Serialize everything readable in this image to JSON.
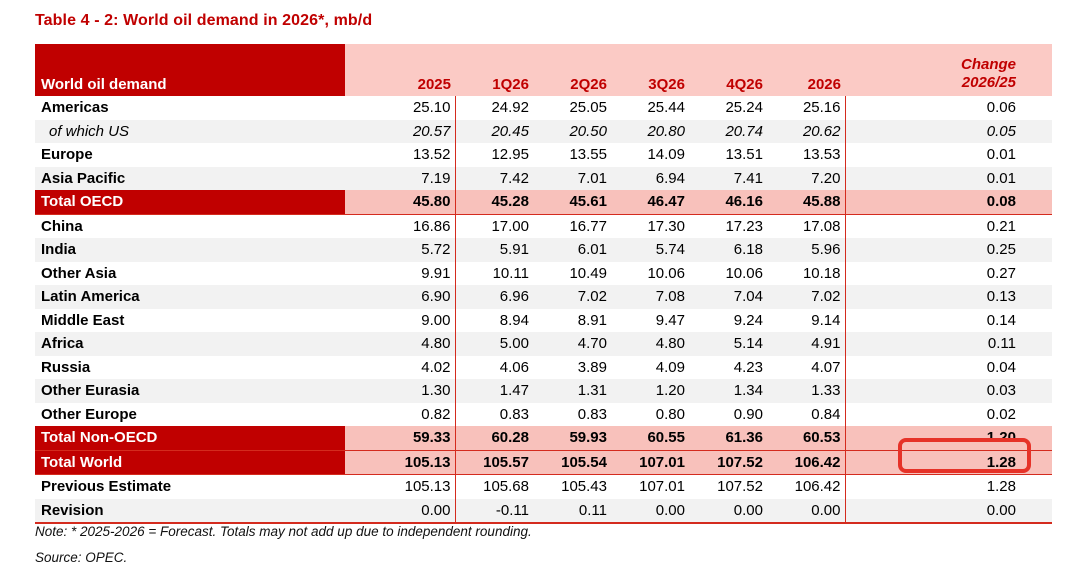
{
  "title": "Table 4 - 2: World oil demand in 2026*, mb/d",
  "colors": {
    "accent_dark_red": "#C00000",
    "header_pink": "#FBCAC5",
    "total_pink": "#F8C1BB",
    "stripe_gray": "#F2F2F2",
    "rule_red": "#D42B1E",
    "highlight_red": "#E63228"
  },
  "table": {
    "header": {
      "label": "World oil demand",
      "y2025": "2025",
      "q1": "1Q26",
      "q2": "2Q26",
      "q3": "3Q26",
      "q4": "4Q26",
      "y2026": "2026",
      "change_line1": "Change",
      "change_line2": "2026/25"
    },
    "column_keys": [
      "2025",
      "1q26",
      "2q26",
      "3q26",
      "4q26",
      "2026",
      "change"
    ],
    "rows": [
      {
        "id": "americas",
        "label": "Americas",
        "style": "plain",
        "values": [
          "25.10",
          "24.92",
          "25.05",
          "25.44",
          "25.24",
          "25.16",
          "0.06"
        ]
      },
      {
        "id": "of-which-us",
        "label": "of which US",
        "style": "italic stripe",
        "values": [
          "20.57",
          "20.45",
          "20.50",
          "20.80",
          "20.74",
          "20.62",
          "0.05"
        ]
      },
      {
        "id": "europe",
        "label": "Europe",
        "style": "plain",
        "values": [
          "13.52",
          "12.95",
          "13.55",
          "14.09",
          "13.51",
          "13.53",
          "0.01"
        ]
      },
      {
        "id": "asia-pacific",
        "label": "Asia Pacific",
        "style": "stripe",
        "values": [
          "7.19",
          "7.42",
          "7.01",
          "6.94",
          "7.41",
          "7.20",
          "0.01"
        ]
      },
      {
        "id": "total-oecd",
        "label": "Total OECD",
        "style": "total",
        "values": [
          "45.80",
          "45.28",
          "45.61",
          "46.47",
          "46.16",
          "45.88",
          "0.08"
        ]
      },
      {
        "id": "china",
        "label": "China",
        "style": "plain",
        "values": [
          "16.86",
          "17.00",
          "16.77",
          "17.30",
          "17.23",
          "17.08",
          "0.21"
        ]
      },
      {
        "id": "india",
        "label": "India",
        "style": "stripe",
        "values": [
          "5.72",
          "5.91",
          "6.01",
          "5.74",
          "6.18",
          "5.96",
          "0.25"
        ]
      },
      {
        "id": "other-asia",
        "label": "Other Asia",
        "style": "plain",
        "values": [
          "9.91",
          "10.11",
          "10.49",
          "10.06",
          "10.06",
          "10.18",
          "0.27"
        ]
      },
      {
        "id": "latin-america",
        "label": "Latin America",
        "style": "stripe",
        "values": [
          "6.90",
          "6.96",
          "7.02",
          "7.08",
          "7.04",
          "7.02",
          "0.13"
        ]
      },
      {
        "id": "middle-east",
        "label": "Middle East",
        "style": "plain",
        "values": [
          "9.00",
          "8.94",
          "8.91",
          "9.47",
          "9.24",
          "9.14",
          "0.14"
        ]
      },
      {
        "id": "africa",
        "label": "Africa",
        "style": "stripe",
        "values": [
          "4.80",
          "5.00",
          "4.70",
          "4.80",
          "5.14",
          "4.91",
          "0.11"
        ]
      },
      {
        "id": "russia",
        "label": "Russia",
        "style": "plain",
        "values": [
          "4.02",
          "4.06",
          "3.89",
          "4.09",
          "4.23",
          "4.07",
          "0.04"
        ]
      },
      {
        "id": "other-eurasia",
        "label": "Other Eurasia",
        "style": "stripe",
        "values": [
          "1.30",
          "1.47",
          "1.31",
          "1.20",
          "1.34",
          "1.33",
          "0.03"
        ]
      },
      {
        "id": "other-europe",
        "label": "Other Europe",
        "style": "plain",
        "values": [
          "0.82",
          "0.83",
          "0.83",
          "0.80",
          "0.90",
          "0.84",
          "0.02"
        ]
      },
      {
        "id": "total-non-oecd",
        "label": "Total Non-OECD",
        "style": "total",
        "values": [
          "59.33",
          "60.28",
          "59.93",
          "60.55",
          "61.36",
          "60.53",
          "1.20"
        ]
      },
      {
        "id": "total-world",
        "label": "Total World",
        "style": "total",
        "values": [
          "105.13",
          "105.57",
          "105.54",
          "107.01",
          "107.52",
          "106.42",
          "1.28"
        ]
      },
      {
        "id": "previous-estimate",
        "label": "Previous Estimate",
        "style": "plain",
        "values": [
          "105.13",
          "105.68",
          "105.43",
          "107.01",
          "107.52",
          "106.42",
          "1.28"
        ]
      },
      {
        "id": "revision",
        "label": "Revision",
        "style": "stripe",
        "values": [
          "0.00",
          "-0.11",
          "0.11",
          "0.00",
          "0.00",
          "0.00",
          "0.00"
        ]
      }
    ]
  },
  "footer": {
    "note": "Note: * 2025-2026 = Forecast. Totals may not add up due to independent rounding.",
    "source": "Source: OPEC."
  }
}
